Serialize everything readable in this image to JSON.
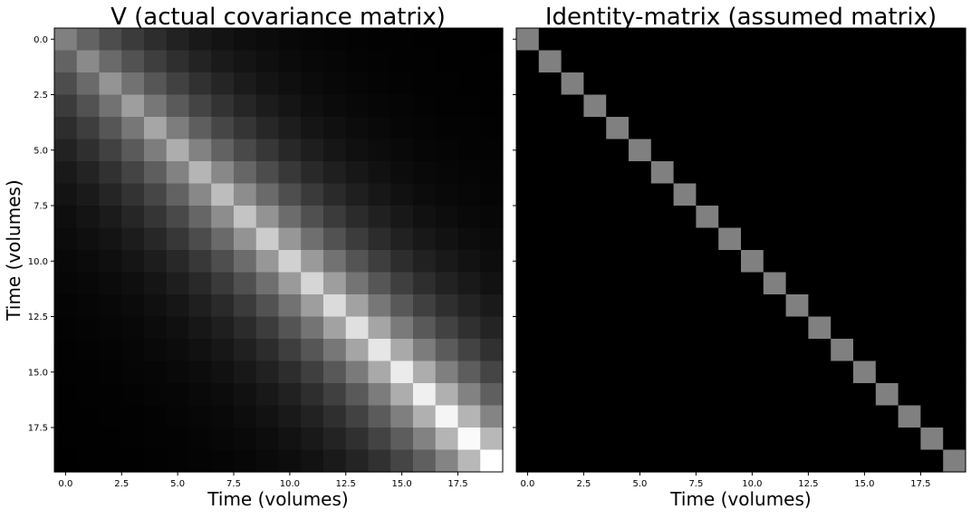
{
  "chart_data": [
    {
      "type": "heatmap",
      "title": "V (actual covariance matrix)",
      "xlabel": "Time (volumes)",
      "ylabel": "Time (volumes)",
      "size": 20,
      "colormap": "gray",
      "xticks": [
        "0.0",
        "2.5",
        "5.0",
        "7.5",
        "10.0",
        "12.5",
        "15.0",
        "17.5"
      ],
      "yticks": [
        "0.0",
        "2.5",
        "5.0",
        "7.5",
        "10.0",
        "12.5",
        "15.0",
        "17.5"
      ],
      "tick_values": [
        0,
        2.5,
        5,
        7.5,
        10,
        12.5,
        15,
        17.5
      ],
      "matrix_rule": "V[i][j] = diag[max(i,j)] * decay^|i-j|",
      "diag": [
        0.5,
        0.54,
        0.58,
        0.62,
        0.65,
        0.68,
        0.71,
        0.74,
        0.77,
        0.8,
        0.82,
        0.84,
        0.86,
        0.88,
        0.9,
        0.92,
        0.94,
        0.96,
        0.98,
        1.0
      ],
      "decay": 0.72
    },
    {
      "type": "heatmap",
      "title": "Identity-matrix (assumed matrix)",
      "xlabel": "Time (volumes)",
      "ylabel": "",
      "size": 20,
      "colormap": "gray",
      "xticks": [
        "0.0",
        "2.5",
        "5.0",
        "7.5",
        "10.0",
        "12.5",
        "15.0",
        "17.5"
      ],
      "yticks": [],
      "tick_values": [
        0,
        2.5,
        5,
        7.5,
        10,
        12.5,
        15,
        17.5
      ],
      "matrix_rule": "identity",
      "diag_value": 0.5
    }
  ]
}
